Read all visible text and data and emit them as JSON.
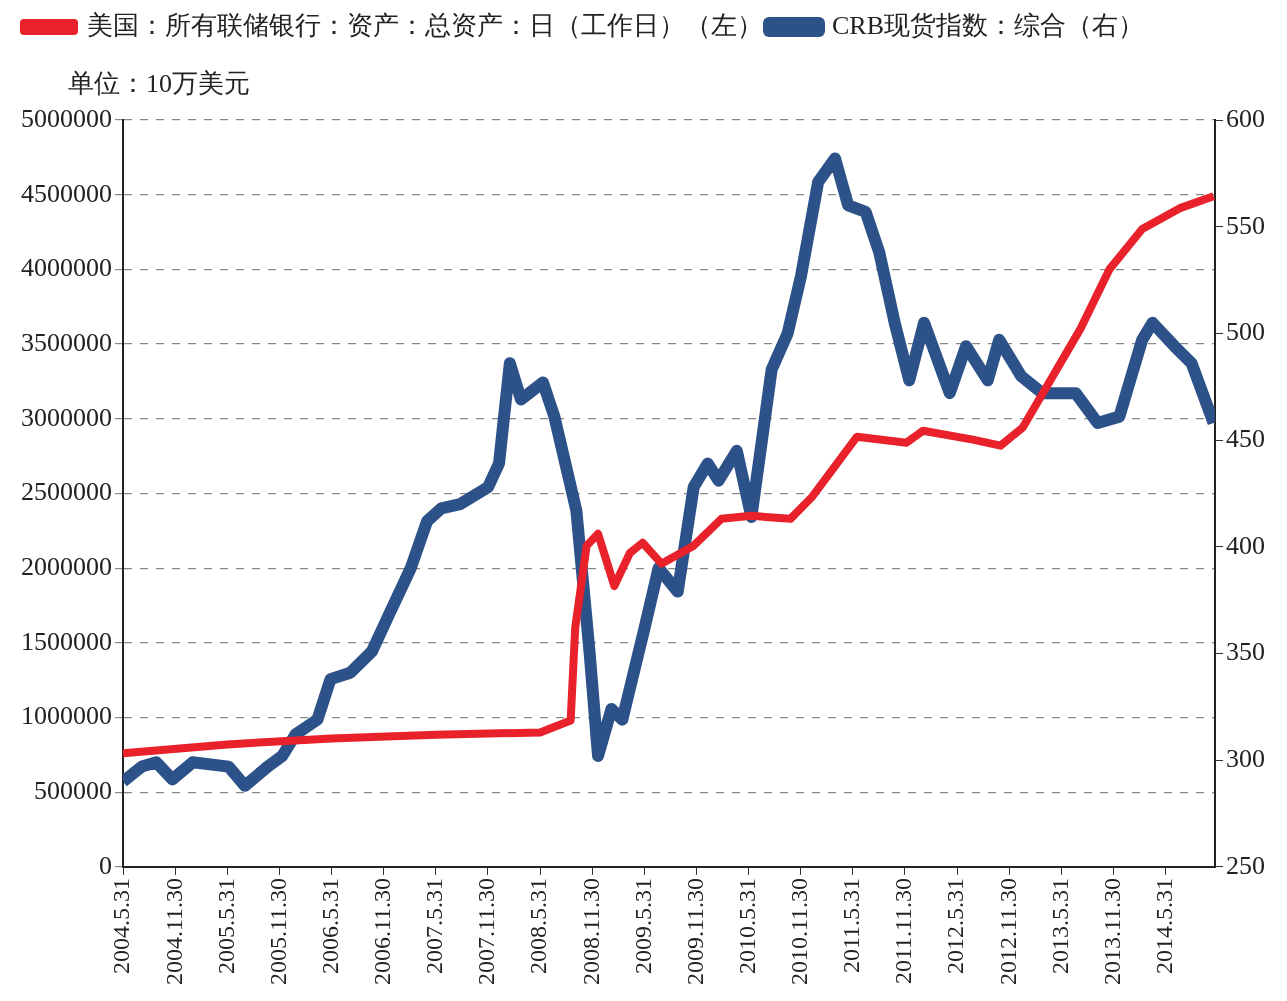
{
  "chart_data": {
    "type": "line",
    "ylabel": "单位：10万美元",
    "legend": "top",
    "grid": "y",
    "xlim": [
      "2004-05-31",
      "2014-11-20"
    ],
    "xticks": [
      {
        "value": "2004-05-31",
        "label": "2004.5.31"
      },
      {
        "value": "2004-11-30",
        "label": "2004.11.30"
      },
      {
        "value": "2005-05-31",
        "label": "2005.5.31"
      },
      {
        "value": "2005-11-30",
        "label": "2005.11.30"
      },
      {
        "value": "2006-05-31",
        "label": "2006.5.31"
      },
      {
        "value": "2006-11-30",
        "label": "2006.11.30"
      },
      {
        "value": "2007-05-31",
        "label": "2007.5.31"
      },
      {
        "value": "2007-11-30",
        "label": "2007.11.30"
      },
      {
        "value": "2008-05-31",
        "label": "2008.5.31"
      },
      {
        "value": "2008-11-30",
        "label": "2008.11.30"
      },
      {
        "value": "2009-05-31",
        "label": "2009.5.31"
      },
      {
        "value": "2009-11-30",
        "label": "2009.11.30"
      },
      {
        "value": "2010-05-31",
        "label": "2010.5.31"
      },
      {
        "value": "2010-11-30",
        "label": "2010.11.30"
      },
      {
        "value": "2011-05-31",
        "label": "2011.5.31"
      },
      {
        "value": "2011-11-30",
        "label": "2011.11.30"
      },
      {
        "value": "2012-05-31",
        "label": "2012.5.31"
      },
      {
        "value": "2012-11-30",
        "label": "2012.11.30"
      },
      {
        "value": "2013-05-31",
        "label": "2013.5.31"
      },
      {
        "value": "2013-11-30",
        "label": "2013.11.30"
      },
      {
        "value": "2014-05-31",
        "label": "2014.5.31"
      }
    ],
    "ylim": [
      0,
      5000000
    ],
    "yticks": [
      0,
      500000,
      1000000,
      1500000,
      2000000,
      2500000,
      3000000,
      3500000,
      4000000,
      4500000,
      5000000
    ],
    "y2lim": [
      250,
      600
    ],
    "y2ticks": [
      250,
      300,
      350,
      400,
      450,
      500,
      550,
      600
    ],
    "series": [
      {
        "name": "美国：所有联储银行：资产：总资产：日（工作日）（左）",
        "color": "#e8212b",
        "x": [
          "2004-05-31",
          "2005-05-31",
          "2006-05-31",
          "2007-05-31",
          "2008-05-31",
          "2008-09-15",
          "2008-10-01",
          "2008-11-10",
          "2008-12-20",
          "2009-02-15",
          "2009-04-10",
          "2009-05-25",
          "2009-07-30",
          "2009-11-20",
          "2010-02-25",
          "2010-06-10",
          "2010-10-25",
          "2011-01-10",
          "2011-06-15",
          "2011-12-05",
          "2012-02-01",
          "2012-07-25",
          "2012-10-30",
          "2013-01-15",
          "2013-04-20",
          "2013-08-05",
          "2013-11-15",
          "2014-03-10",
          "2014-07-20",
          "2014-11-15"
        ],
        "values": [
          760000,
          820000,
          860000,
          885000,
          900000,
          980000,
          1600000,
          2150000,
          2230000,
          1880000,
          2100000,
          2170000,
          2030000,
          2150000,
          2330000,
          2350000,
          2330000,
          2480000,
          2880000,
          2840000,
          2920000,
          2860000,
          2820000,
          2940000,
          3250000,
          3600000,
          4000000,
          4270000,
          4410000,
          4490000
        ]
      },
      {
        "name": "CRB现货指数：综合（右）",
        "color": "#2d5289",
        "axis": "y2",
        "x": [
          "2004-05-31",
          "2004-08-05",
          "2004-09-25",
          "2004-11-20",
          "2005-01-30",
          "2005-06-05",
          "2005-08-01",
          "2005-10-20",
          "2005-12-10",
          "2006-01-25",
          "2006-04-12",
          "2006-05-28",
          "2006-08-05",
          "2006-10-20",
          "2006-12-18",
          "2007-03-05",
          "2007-05-01",
          "2007-06-20",
          "2007-08-25",
          "2007-12-01",
          "2008-01-08",
          "2008-02-15",
          "2008-03-25",
          "2008-06-10",
          "2008-07-20",
          "2008-10-05",
          "2008-11-20",
          "2008-12-20",
          "2009-02-05",
          "2009-03-15",
          "2009-06-01",
          "2009-07-20",
          "2009-09-25",
          "2009-11-20",
          "2010-01-08",
          "2010-02-15",
          "2010-04-20",
          "2010-06-10",
          "2010-08-20",
          "2010-10-15",
          "2010-12-01",
          "2011-01-30",
          "2011-03-30",
          "2011-05-15",
          "2011-07-15",
          "2011-09-01",
          "2011-10-25",
          "2011-12-15",
          "2012-02-05",
          "2012-05-05",
          "2012-07-01",
          "2012-09-15",
          "2012-10-25",
          "2013-01-10",
          "2013-03-25",
          "2013-07-20",
          "2013-10-05",
          "2013-12-20",
          "2014-03-10",
          "2014-04-15",
          "2014-07-01",
          "2014-08-30",
          "2014-11-15"
        ],
        "values": [
          290,
          297,
          299,
          291,
          299,
          297,
          288,
          297,
          302,
          312,
          319,
          338,
          341,
          351,
          368,
          390,
          412,
          418,
          420,
          428,
          439,
          486,
          469,
          477,
          461,
          417,
          351,
          302,
          324,
          319,
          362,
          390,
          379,
          428,
          439,
          431,
          445,
          414,
          483,
          500,
          527,
          571,
          582,
          560,
          557,
          538,
          505,
          478,
          505,
          472,
          494,
          478,
          497,
          480,
          472,
          472,
          458,
          461,
          497,
          505,
          494,
          486,
          458
        ]
      }
    ]
  }
}
